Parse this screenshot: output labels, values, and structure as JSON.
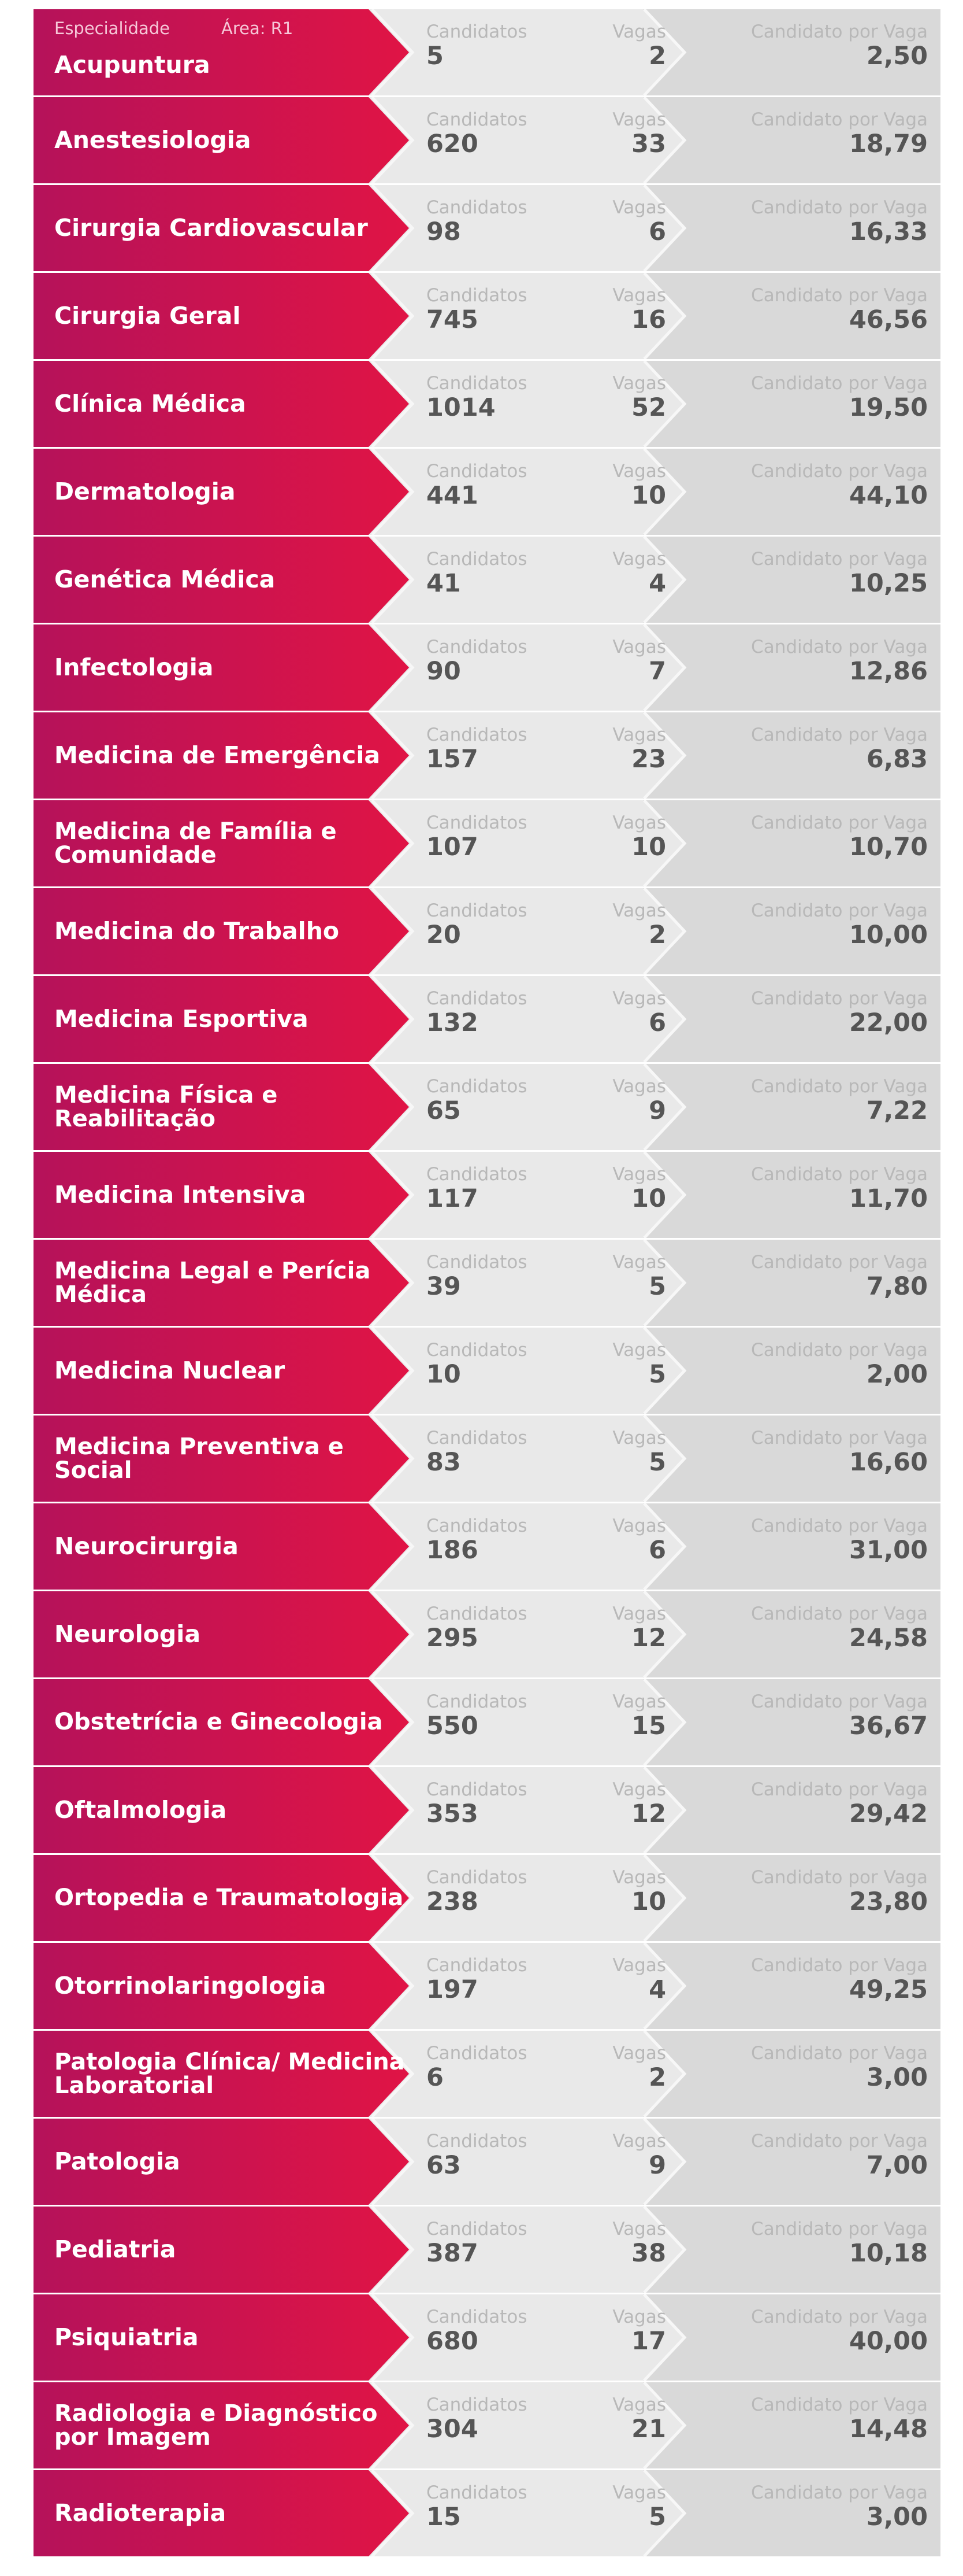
{
  "header": {
    "specialty_label": "Especialidade",
    "area_label": "Área: R1"
  },
  "labels": {
    "candidates": "Candidatos",
    "vacancies": "Vagas",
    "ratio": "Candidato por Vaga"
  },
  "colors": {
    "accent_start": "#b5125a",
    "accent_end": "#e01445",
    "mid_gray": "#e9e9e9",
    "right_gray": "#d9d9d9"
  },
  "rows": [
    {
      "specialty": "Acupuntura",
      "candidates": "5",
      "vacancies": "2",
      "ratio": "2,50"
    },
    {
      "specialty": "Anestesiologia",
      "candidates": "620",
      "vacancies": "33",
      "ratio": "18,79"
    },
    {
      "specialty": "Cirurgia Cardiovascular",
      "candidates": "98",
      "vacancies": "6",
      "ratio": "16,33"
    },
    {
      "specialty": "Cirurgia Geral",
      "candidates": "745",
      "vacancies": "16",
      "ratio": "46,56"
    },
    {
      "specialty": "Clínica Médica",
      "candidates": "1014",
      "vacancies": "52",
      "ratio": "19,50"
    },
    {
      "specialty": "Dermatologia",
      "candidates": "441",
      "vacancies": "10",
      "ratio": "44,10"
    },
    {
      "specialty": "Genética Médica",
      "candidates": "41",
      "vacancies": "4",
      "ratio": "10,25"
    },
    {
      "specialty": "Infectologia",
      "candidates": "90",
      "vacancies": "7",
      "ratio": "12,86"
    },
    {
      "specialty": "Medicina de Emergência",
      "candidates": "157",
      "vacancies": "23",
      "ratio": "6,83"
    },
    {
      "specialty": "Medicina de Família e Comunidade",
      "candidates": "107",
      "vacancies": "10",
      "ratio": "10,70"
    },
    {
      "specialty": "Medicina do Trabalho",
      "candidates": "20",
      "vacancies": "2",
      "ratio": "10,00"
    },
    {
      "specialty": "Medicina Esportiva",
      "candidates": "132",
      "vacancies": "6",
      "ratio": "22,00"
    },
    {
      "specialty": "Medicina Física e Reabilitação",
      "candidates": "65",
      "vacancies": "9",
      "ratio": "7,22"
    },
    {
      "specialty": "Medicina Intensiva",
      "candidates": "117",
      "vacancies": "10",
      "ratio": "11,70"
    },
    {
      "specialty": "Medicina Legal e Perícia Médica",
      "candidates": "39",
      "vacancies": "5",
      "ratio": "7,80"
    },
    {
      "specialty": "Medicina Nuclear",
      "candidates": "10",
      "vacancies": "5",
      "ratio": "2,00"
    },
    {
      "specialty": "Medicina Preventiva e Social",
      "candidates": "83",
      "vacancies": "5",
      "ratio": "16,60"
    },
    {
      "specialty": "Neurocirurgia",
      "candidates": "186",
      "vacancies": "6",
      "ratio": "31,00"
    },
    {
      "specialty": "Neurologia",
      "candidates": "295",
      "vacancies": "12",
      "ratio": "24,58"
    },
    {
      "specialty": "Obstetrícia e Ginecologia",
      "candidates": "550",
      "vacancies": "15",
      "ratio": "36,67"
    },
    {
      "specialty": "Oftalmologia",
      "candidates": "353",
      "vacancies": "12",
      "ratio": "29,42"
    },
    {
      "specialty": "Ortopedia e Traumatologia",
      "candidates": "238",
      "vacancies": "10",
      "ratio": "23,80"
    },
    {
      "specialty": "Otorrinolaringologia",
      "candidates": "197",
      "vacancies": "4",
      "ratio": "49,25"
    },
    {
      "specialty": "Patologia Clínica/ Medicina Laboratorial",
      "candidates": "6",
      "vacancies": "2",
      "ratio": "3,00"
    },
    {
      "specialty": "Patologia",
      "candidates": "63",
      "vacancies": "9",
      "ratio": "7,00"
    },
    {
      "specialty": "Pediatria",
      "candidates": "387",
      "vacancies": "38",
      "ratio": "10,18"
    },
    {
      "specialty": "Psiquiatria",
      "candidates": "680",
      "vacancies": "17",
      "ratio": "40,00"
    },
    {
      "specialty": "Radiologia e Diagnóstico por Imagem",
      "candidates": "304",
      "vacancies": "21",
      "ratio": "14,48"
    },
    {
      "specialty": "Radioterapia",
      "candidates": "15",
      "vacancies": "5",
      "ratio": "3,00"
    }
  ]
}
